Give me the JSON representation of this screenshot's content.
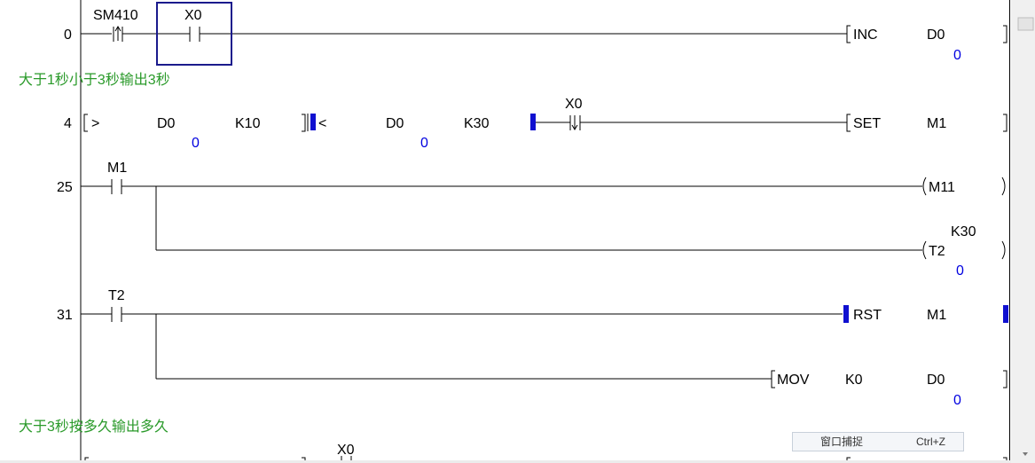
{
  "rungs": [
    {
      "step": "0",
      "contacts": [
        {
          "label": "SM410",
          "type": "rising"
        },
        {
          "label": "X0",
          "type": "normal"
        }
      ],
      "instruction": {
        "op": "INC",
        "arg1": "D0",
        "arg1_value": "0"
      }
    },
    {
      "comment": "大于1秒小于3秒输出3秒"
    },
    {
      "step": "4",
      "compare1": {
        "op": ">",
        "a": "D0",
        "a_value": "0",
        "b": "K10"
      },
      "compare2": {
        "op": "<",
        "a": "D0",
        "a_value": "0",
        "b": "K30"
      },
      "contacts": [
        {
          "label": "X0",
          "type": "falling"
        }
      ],
      "instruction": {
        "op": "SET",
        "arg1": "M1"
      }
    },
    {
      "step": "25",
      "contacts": [
        {
          "label": "M1",
          "type": "normal"
        }
      ],
      "coil1": {
        "label": "M11"
      },
      "coil2": {
        "label": "T2",
        "setpoint": "K30",
        "value": "0"
      }
    },
    {
      "step": "31",
      "contacts": [
        {
          "label": "T2",
          "type": "normal"
        }
      ],
      "instruction": {
        "op": "RST",
        "arg1": "M1"
      },
      "instruction2": {
        "op": "MOV",
        "arg1": "K0",
        "arg2": "D0",
        "arg2_value": "0"
      }
    },
    {
      "comment": "大于3秒按多久输出多久"
    },
    {
      "contacts": [
        {
          "label": "X0"
        }
      ]
    }
  ],
  "tooltip": {
    "label": "窗口捕捉",
    "shortcut": "Ctrl+Z"
  },
  "colors": {
    "comment": "#2a9a2a",
    "value": "#0000e0",
    "cursor": "#1a1a8c",
    "marker": "#1010d0"
  }
}
